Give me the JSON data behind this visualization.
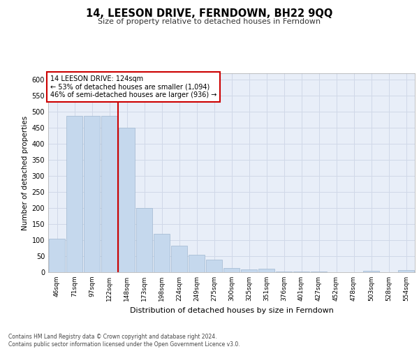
{
  "title": "14, LEESON DRIVE, FERNDOWN, BH22 9QQ",
  "subtitle": "Size of property relative to detached houses in Ferndown",
  "xlabel": "Distribution of detached houses by size in Ferndown",
  "ylabel": "Number of detached properties",
  "categories": [
    "46sqm",
    "71sqm",
    "97sqm",
    "122sqm",
    "148sqm",
    "173sqm",
    "198sqm",
    "224sqm",
    "249sqm",
    "275sqm",
    "300sqm",
    "325sqm",
    "351sqm",
    "376sqm",
    "401sqm",
    "427sqm",
    "452sqm",
    "478sqm",
    "503sqm",
    "528sqm",
    "554sqm"
  ],
  "values": [
    105,
    487,
    487,
    487,
    450,
    200,
    120,
    82,
    55,
    40,
    14,
    9,
    10,
    3,
    2,
    2,
    0,
    0,
    5,
    0,
    6
  ],
  "bar_color": "#c5d8ed",
  "bar_edge_color": "#a0b8d0",
  "vline_color": "#cc0000",
  "annotation_text": "14 LEESON DRIVE: 124sqm\n← 53% of detached houses are smaller (1,094)\n46% of semi-detached houses are larger (936) →",
  "annotation_box_color": "#ffffff",
  "annotation_box_edge": "#cc0000",
  "grid_color": "#d0d8e8",
  "background_color": "#e8eef8",
  "ylim": [
    0,
    620
  ],
  "yticks": [
    0,
    50,
    100,
    150,
    200,
    250,
    300,
    350,
    400,
    450,
    500,
    550,
    600
  ],
  "footer": "Contains HM Land Registry data © Crown copyright and database right 2024.\nContains public sector information licensed under the Open Government Licence v3.0."
}
